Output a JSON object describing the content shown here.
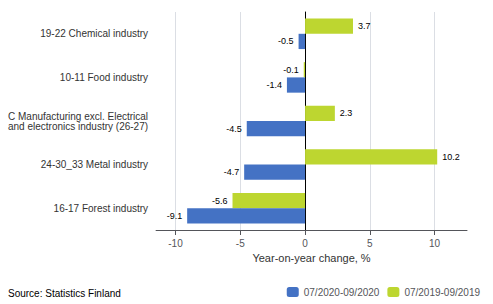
{
  "chart_data": {
    "type": "bar",
    "orientation": "horizontal",
    "categories": [
      "16-17 Forest industry",
      "24-30_33 Metal industry",
      "C Manufacturing excl. Electrical\nand electronics industry (26-27)",
      "10-11 Food industry",
      "19-22 Chemical industry"
    ],
    "series": [
      {
        "name": "07/2020-09/2020",
        "color": "#4472c4",
        "values": [
          -9.1,
          -4.7,
          -4.5,
          -1.4,
          -0.5
        ]
      },
      {
        "name": "07/2019-09/2019",
        "color": "#bdd630",
        "values": [
          -5.6,
          10.2,
          2.3,
          -0.1,
          3.7
        ]
      }
    ],
    "xlabel": "Year-on-year change, %",
    "xlim": [
      -11.5,
      12.5
    ],
    "xticks": [
      -10,
      -5,
      0,
      5,
      10
    ],
    "grid": true,
    "data_labels": true,
    "legend": "bottom",
    "annotations": [
      "Source: Statistics Finland"
    ]
  }
}
